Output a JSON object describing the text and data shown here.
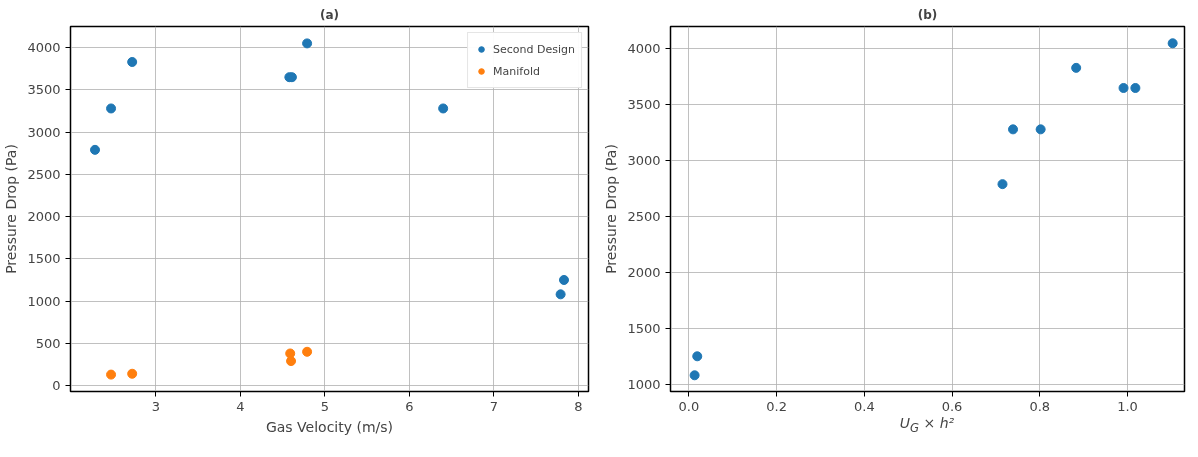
{
  "chart_data": [
    {
      "type": "scatter",
      "title": "(a)",
      "xlabel": "Gas Velocity (m/s)",
      "ylabel": "Pressure Drop (Pa)",
      "xlim": [
        1.99,
        8.12
      ],
      "ylim": [
        -70,
        4250
      ],
      "xticks": [
        3,
        4,
        5,
        6,
        7,
        8
      ],
      "yticks": [
        0,
        500,
        1000,
        1500,
        2000,
        2500,
        3000,
        3500,
        4000
      ],
      "grid": true,
      "legend": "top right",
      "marker": "circle",
      "series": [
        {
          "name": "Second Design",
          "color": "#1f77b4",
          "x": [
            2.28,
            2.47,
            2.72,
            4.58,
            4.61,
            4.79,
            6.4,
            7.83,
            7.79
          ],
          "values": [
            2790,
            3280,
            3830,
            3650,
            3650,
            4050,
            3280,
            1250,
            1080
          ]
        },
        {
          "name": "Manifold",
          "color": "#ff7f0e",
          "x": [
            2.47,
            2.72,
            4.59,
            4.6,
            4.79
          ],
          "values": [
            130,
            140,
            380,
            290,
            400
          ]
        }
      ]
    },
    {
      "type": "scatter",
      "title": "(b)",
      "xlabel": "U$_{G}$ × h²",
      "ylabel": "Pressure Drop (Pa)",
      "xlim": [
        -0.042,
        1.13
      ],
      "ylim": [
        935,
        4200
      ],
      "xticks": [
        {
          "value": 0,
          "label": "0.0"
        },
        0.2,
        0.4,
        0.6,
        0.8,
        {
          "value": 1,
          "label": "1.0"
        }
      ],
      "yticks": [
        1000,
        1500,
        2000,
        2500,
        3000,
        3500,
        4000
      ],
      "grid": true,
      "marker": "circle",
      "series": [
        {
          "color": "#1f77b4",
          "x": [
            0.013,
            0.019,
            0.715,
            0.739,
            0.802,
            0.883,
            0.991,
            1.018,
            1.103
          ],
          "values": [
            1080,
            1250,
            2790,
            3280,
            3280,
            3830,
            3650,
            3650,
            4050
          ]
        }
      ]
    }
  ]
}
